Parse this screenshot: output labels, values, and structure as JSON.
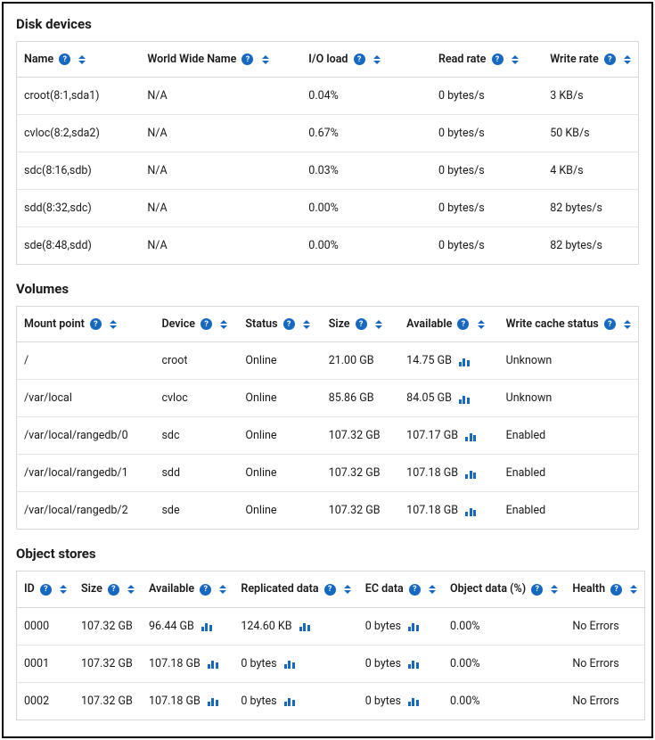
{
  "colors": {
    "accent": "#1668c1",
    "border": "#d7d7d7",
    "row_border": "#e6e6e6",
    "text": "#1a1a1a",
    "background": "#ffffff"
  },
  "disk_devices": {
    "title": "Disk devices",
    "columns": {
      "name": "Name",
      "wwn": "World Wide Name",
      "io_load": "I/O load",
      "read_rate": "Read rate",
      "write_rate": "Write rate"
    },
    "rows": [
      {
        "name": "croot(8:1,sda1)",
        "wwn": "N/A",
        "io_load": "0.04%",
        "read_rate": "0 bytes/s",
        "write_rate": "3 KB/s"
      },
      {
        "name": "cvloc(8:2,sda2)",
        "wwn": "N/A",
        "io_load": "0.67%",
        "read_rate": "0 bytes/s",
        "write_rate": "50 KB/s"
      },
      {
        "name": "sdc(8:16,sdb)",
        "wwn": "N/A",
        "io_load": "0.03%",
        "read_rate": "0 bytes/s",
        "write_rate": "4 KB/s"
      },
      {
        "name": "sdd(8:32,sdc)",
        "wwn": "N/A",
        "io_load": "0.00%",
        "read_rate": "0 bytes/s",
        "write_rate": "82 bytes/s"
      },
      {
        "name": "sde(8:48,sdd)",
        "wwn": "N/A",
        "io_load": "0.00%",
        "read_rate": "0 bytes/s",
        "write_rate": "82 bytes/s"
      }
    ]
  },
  "volumes": {
    "title": "Volumes",
    "columns": {
      "mount": "Mount point",
      "device": "Device",
      "status": "Status",
      "size": "Size",
      "available": "Available",
      "cache": "Write cache status"
    },
    "rows": [
      {
        "mount": "/",
        "device": "croot",
        "status": "Online",
        "size": "21.00 GB",
        "available": "14.75 GB",
        "cache": "Unknown"
      },
      {
        "mount": "/var/local",
        "device": "cvloc",
        "status": "Online",
        "size": "85.86 GB",
        "available": "84.05 GB",
        "cache": "Unknown"
      },
      {
        "mount": "/var/local/rangedb/0",
        "device": "sdc",
        "status": "Online",
        "size": "107.32 GB",
        "available": "107.17 GB",
        "cache": "Enabled"
      },
      {
        "mount": "/var/local/rangedb/1",
        "device": "sdd",
        "status": "Online",
        "size": "107.32 GB",
        "available": "107.18 GB",
        "cache": "Enabled"
      },
      {
        "mount": "/var/local/rangedb/2",
        "device": "sde",
        "status": "Online",
        "size": "107.32 GB",
        "available": "107.18 GB",
        "cache": "Enabled"
      }
    ]
  },
  "object_stores": {
    "title": "Object stores",
    "columns": {
      "id": "ID",
      "size": "Size",
      "available": "Available",
      "replicated": "Replicated data",
      "ec": "EC data",
      "obj_pct": "Object data (%)",
      "health": "Health"
    },
    "rows": [
      {
        "id": "0000",
        "size": "107.32 GB",
        "available": "96.44 GB",
        "replicated": "124.60 KB",
        "ec": "0 bytes",
        "obj_pct": "0.00%",
        "health": "No Errors"
      },
      {
        "id": "0001",
        "size": "107.32 GB",
        "available": "107.18 GB",
        "replicated": "0 bytes",
        "ec": "0 bytes",
        "obj_pct": "0.00%",
        "health": "No Errors"
      },
      {
        "id": "0002",
        "size": "107.32 GB",
        "available": "107.18 GB",
        "replicated": "0 bytes",
        "ec": "0 bytes",
        "obj_pct": "0.00%",
        "health": "No Errors"
      }
    ]
  }
}
